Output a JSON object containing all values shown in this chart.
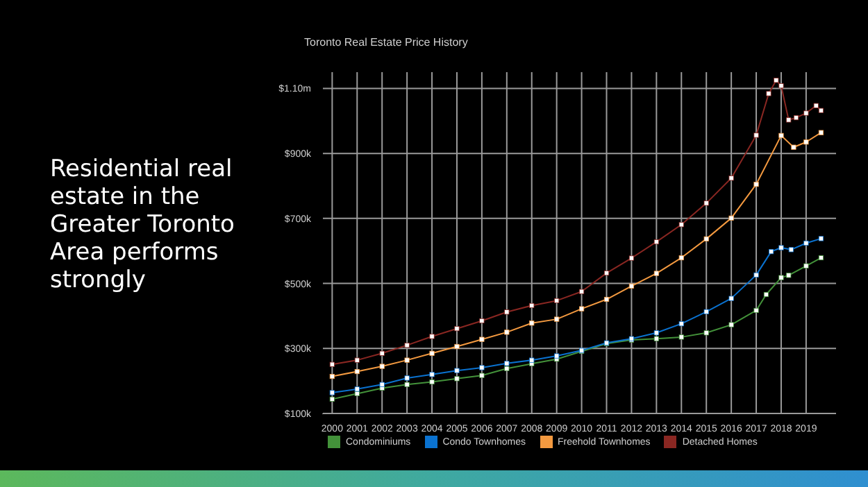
{
  "chart_data": {
    "type": "line",
    "title": "Toronto Real Estate Price History",
    "annotations": [
      "Residential real estate in the Greater Toronto Area performs strongly"
    ],
    "xlim": [
      1999.6,
      2020.2
    ],
    "xticks": [
      2000,
      2001,
      2002,
      2003,
      2004,
      2005,
      2006,
      2007,
      2008,
      2009,
      2010,
      2011,
      2012,
      2013,
      2014,
      2015,
      2016,
      2017,
      2018,
      2019
    ],
    "ylim": [
      100000,
      1150000
    ],
    "yticks": [
      {
        "value": 100000,
        "label": "$100k"
      },
      {
        "value": 300000,
        "label": "$300k"
      },
      {
        "value": 500000,
        "label": "$500k"
      },
      {
        "value": 700000,
        "label": "$700k"
      },
      {
        "value": 900000,
        "label": "$900k"
      },
      {
        "value": 1100000,
        "label": "$1.10m"
      }
    ],
    "grid": true,
    "legend": "bottom",
    "marker": "square",
    "line_style": "solid",
    "series": [
      {
        "name": "Condominiums",
        "color": "#43923a",
        "x": [
          2000,
          2001,
          2002,
          2003,
          2004,
          2005,
          2006,
          2007,
          2008,
          2009,
          2010,
          2011,
          2012,
          2013,
          2014,
          2015,
          2016,
          2017,
          2017.4,
          2018,
          2018.3,
          2019,
          2019.6
        ],
        "values": [
          144000,
          161000,
          178000,
          189000,
          197000,
          207000,
          217000,
          238000,
          253000,
          267000,
          291000,
          315000,
          326000,
          330000,
          335000,
          348000,
          373000,
          417000,
          466000,
          518000,
          525000,
          554000,
          579000
        ]
      },
      {
        "name": "Condo Townhomes",
        "color": "#0a72d0",
        "x": [
          2000,
          2001,
          2002,
          2003,
          2004,
          2005,
          2006,
          2007,
          2008,
          2009,
          2010,
          2011,
          2012,
          2013,
          2014,
          2015,
          2016,
          2017,
          2017.6,
          2018,
          2018.4,
          2019,
          2019.6
        ],
        "values": [
          164000,
          175000,
          189000,
          209000,
          220000,
          232000,
          241000,
          254000,
          264000,
          277000,
          294000,
          317000,
          330000,
          348000,
          376000,
          413000,
          454000,
          526000,
          598000,
          610000,
          604000,
          624000,
          638000
        ]
      },
      {
        "name": "Freehold Townhomes",
        "color": "#f49a40",
        "x": [
          2000,
          2001,
          2002,
          2003,
          2004,
          2005,
          2006,
          2007,
          2008,
          2009,
          2010,
          2011,
          2012,
          2013,
          2014,
          2015,
          2016,
          2017,
          2018,
          2018.5,
          2019,
          2019.6
        ],
        "values": [
          214000,
          229000,
          245000,
          264000,
          285000,
          306000,
          328000,
          350000,
          378000,
          390000,
          422000,
          451000,
          492000,
          531000,
          579000,
          637000,
          701000,
          805000,
          955000,
          919000,
          935000,
          964000
        ]
      },
      {
        "name": "Detached Homes",
        "color": "#8a2722",
        "x": [
          2000,
          2001,
          2002,
          2003,
          2004,
          2005,
          2006,
          2007,
          2008,
          2009,
          2010,
          2011,
          2012,
          2013,
          2014,
          2015,
          2016,
          2017,
          2017.5,
          2017.8,
          2018,
          2018.3,
          2018.6,
          2019,
          2019.4,
          2019.6
        ],
        "values": [
          251000,
          264000,
          285000,
          310000,
          337000,
          361000,
          385000,
          412000,
          432000,
          447000,
          475000,
          532000,
          578000,
          628000,
          681000,
          747000,
          824000,
          956000,
          1084000,
          1125000,
          1108000,
          1003000,
          1010000,
          1024000,
          1047000,
          1032000
        ]
      }
    ]
  }
}
